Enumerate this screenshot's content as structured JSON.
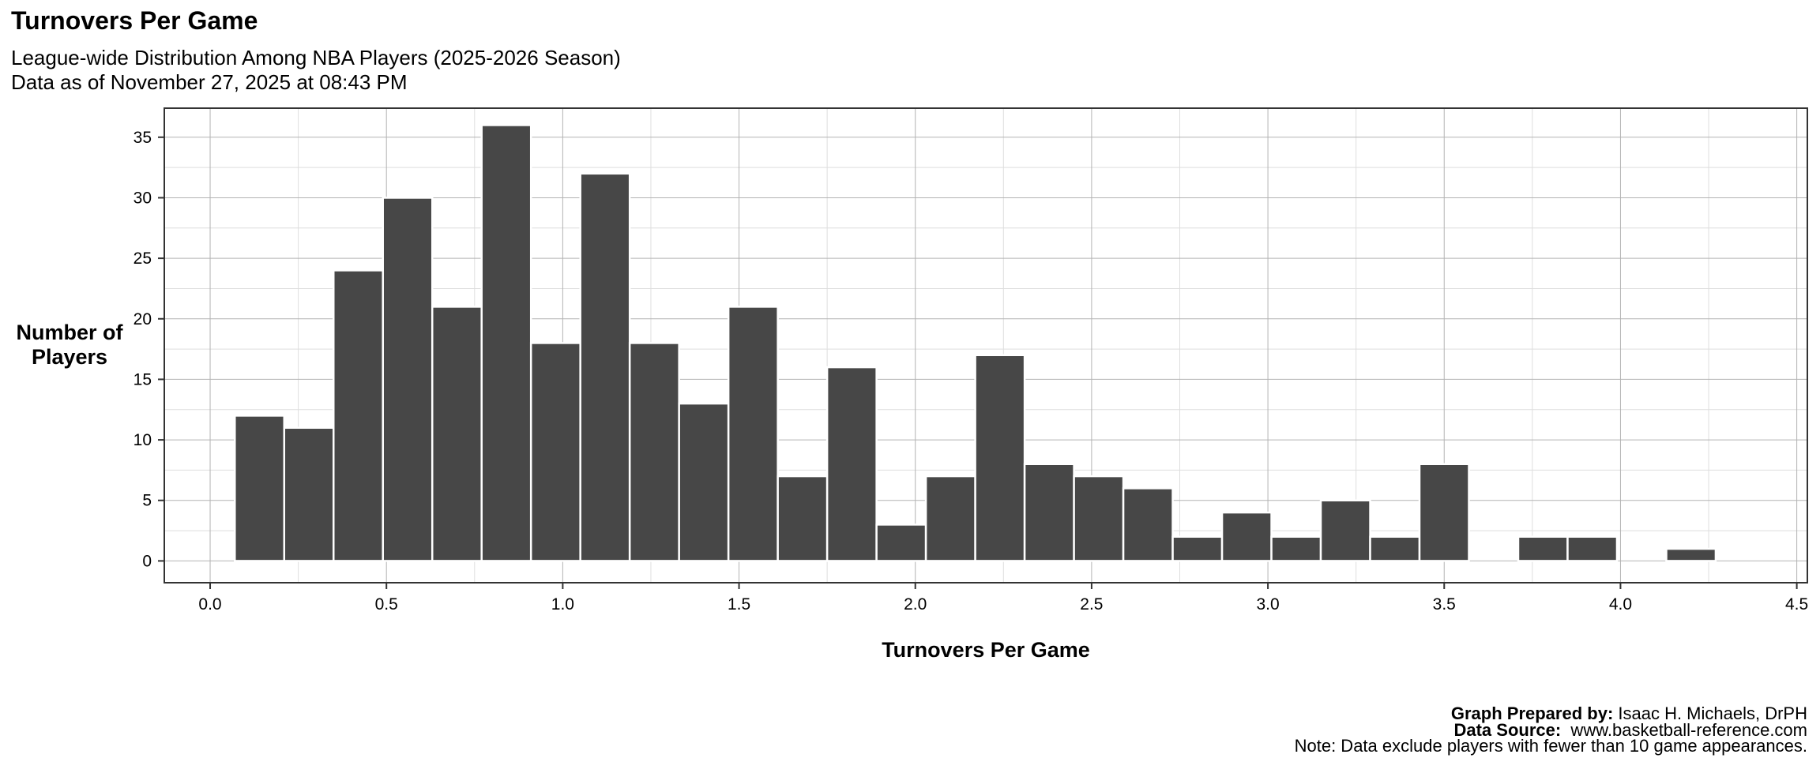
{
  "header": {
    "title": "Turnovers Per Game",
    "subtitle_line1": "League-wide Distribution Among NBA Players (2025-2026 Season)",
    "subtitle_line2": "Data as of November 27, 2025 at 08:43 PM"
  },
  "axes": {
    "ylabel_line1": "Number of",
    "ylabel_line2": "Players",
    "xlabel": "Turnovers Per Game"
  },
  "footer": {
    "prepared_label": "Graph Prepared by:",
    "prepared_value": " Isaac H. Michaels, DrPH",
    "source_label": "Data Source:",
    "source_value": "  www.basketball-reference.com",
    "note": "Note: Data exclude players with fewer than 10 game appearances."
  },
  "colors": {
    "bar": "#474747",
    "bar_edge": "#ffffff",
    "grid_major": "#b3b3b3",
    "grid_minor": "#dedede",
    "frame": "#333333"
  },
  "chart_data": {
    "type": "bar",
    "title": "Turnovers Per Game",
    "subtitle": "League-wide Distribution Among NBA Players (2025-2026 Season)",
    "xlabel": "Turnovers Per Game",
    "ylabel": "Number of Players",
    "bin_width": 0.14,
    "bin_centers": [
      0.14,
      0.28,
      0.42,
      0.56,
      0.7,
      0.84,
      0.98,
      1.12,
      1.26,
      1.4,
      1.54,
      1.68,
      1.82,
      1.96,
      2.1,
      2.24,
      2.38,
      2.52,
      2.66,
      2.8,
      2.94,
      3.08,
      3.22,
      3.36,
      3.5,
      3.64,
      3.78,
      3.92,
      4.06,
      4.2
    ],
    "values": [
      12,
      11,
      24,
      30,
      21,
      36,
      18,
      32,
      18,
      13,
      21,
      7,
      16,
      3,
      7,
      17,
      8,
      7,
      6,
      2,
      4,
      2,
      5,
      2,
      8,
      0,
      2,
      2,
      0,
      1
    ],
    "xlim": [
      -0.13,
      4.53
    ],
    "ylim": [
      -1.8,
      37.4
    ],
    "x_ticks": [
      0.0,
      0.5,
      1.0,
      1.5,
      2.0,
      2.5,
      3.0,
      3.5,
      4.0,
      4.5
    ],
    "x_tick_labels": [
      "0.0",
      "0.5",
      "1.0",
      "1.5",
      "2.0",
      "2.5",
      "3.0",
      "3.5",
      "4.0",
      "4.5"
    ],
    "y_ticks": [
      0,
      5,
      10,
      15,
      20,
      25,
      30,
      35
    ],
    "y_tick_labels": [
      "0",
      "5",
      "10",
      "15",
      "20",
      "25",
      "30",
      "35"
    ],
    "grid": true,
    "legend": "none"
  }
}
